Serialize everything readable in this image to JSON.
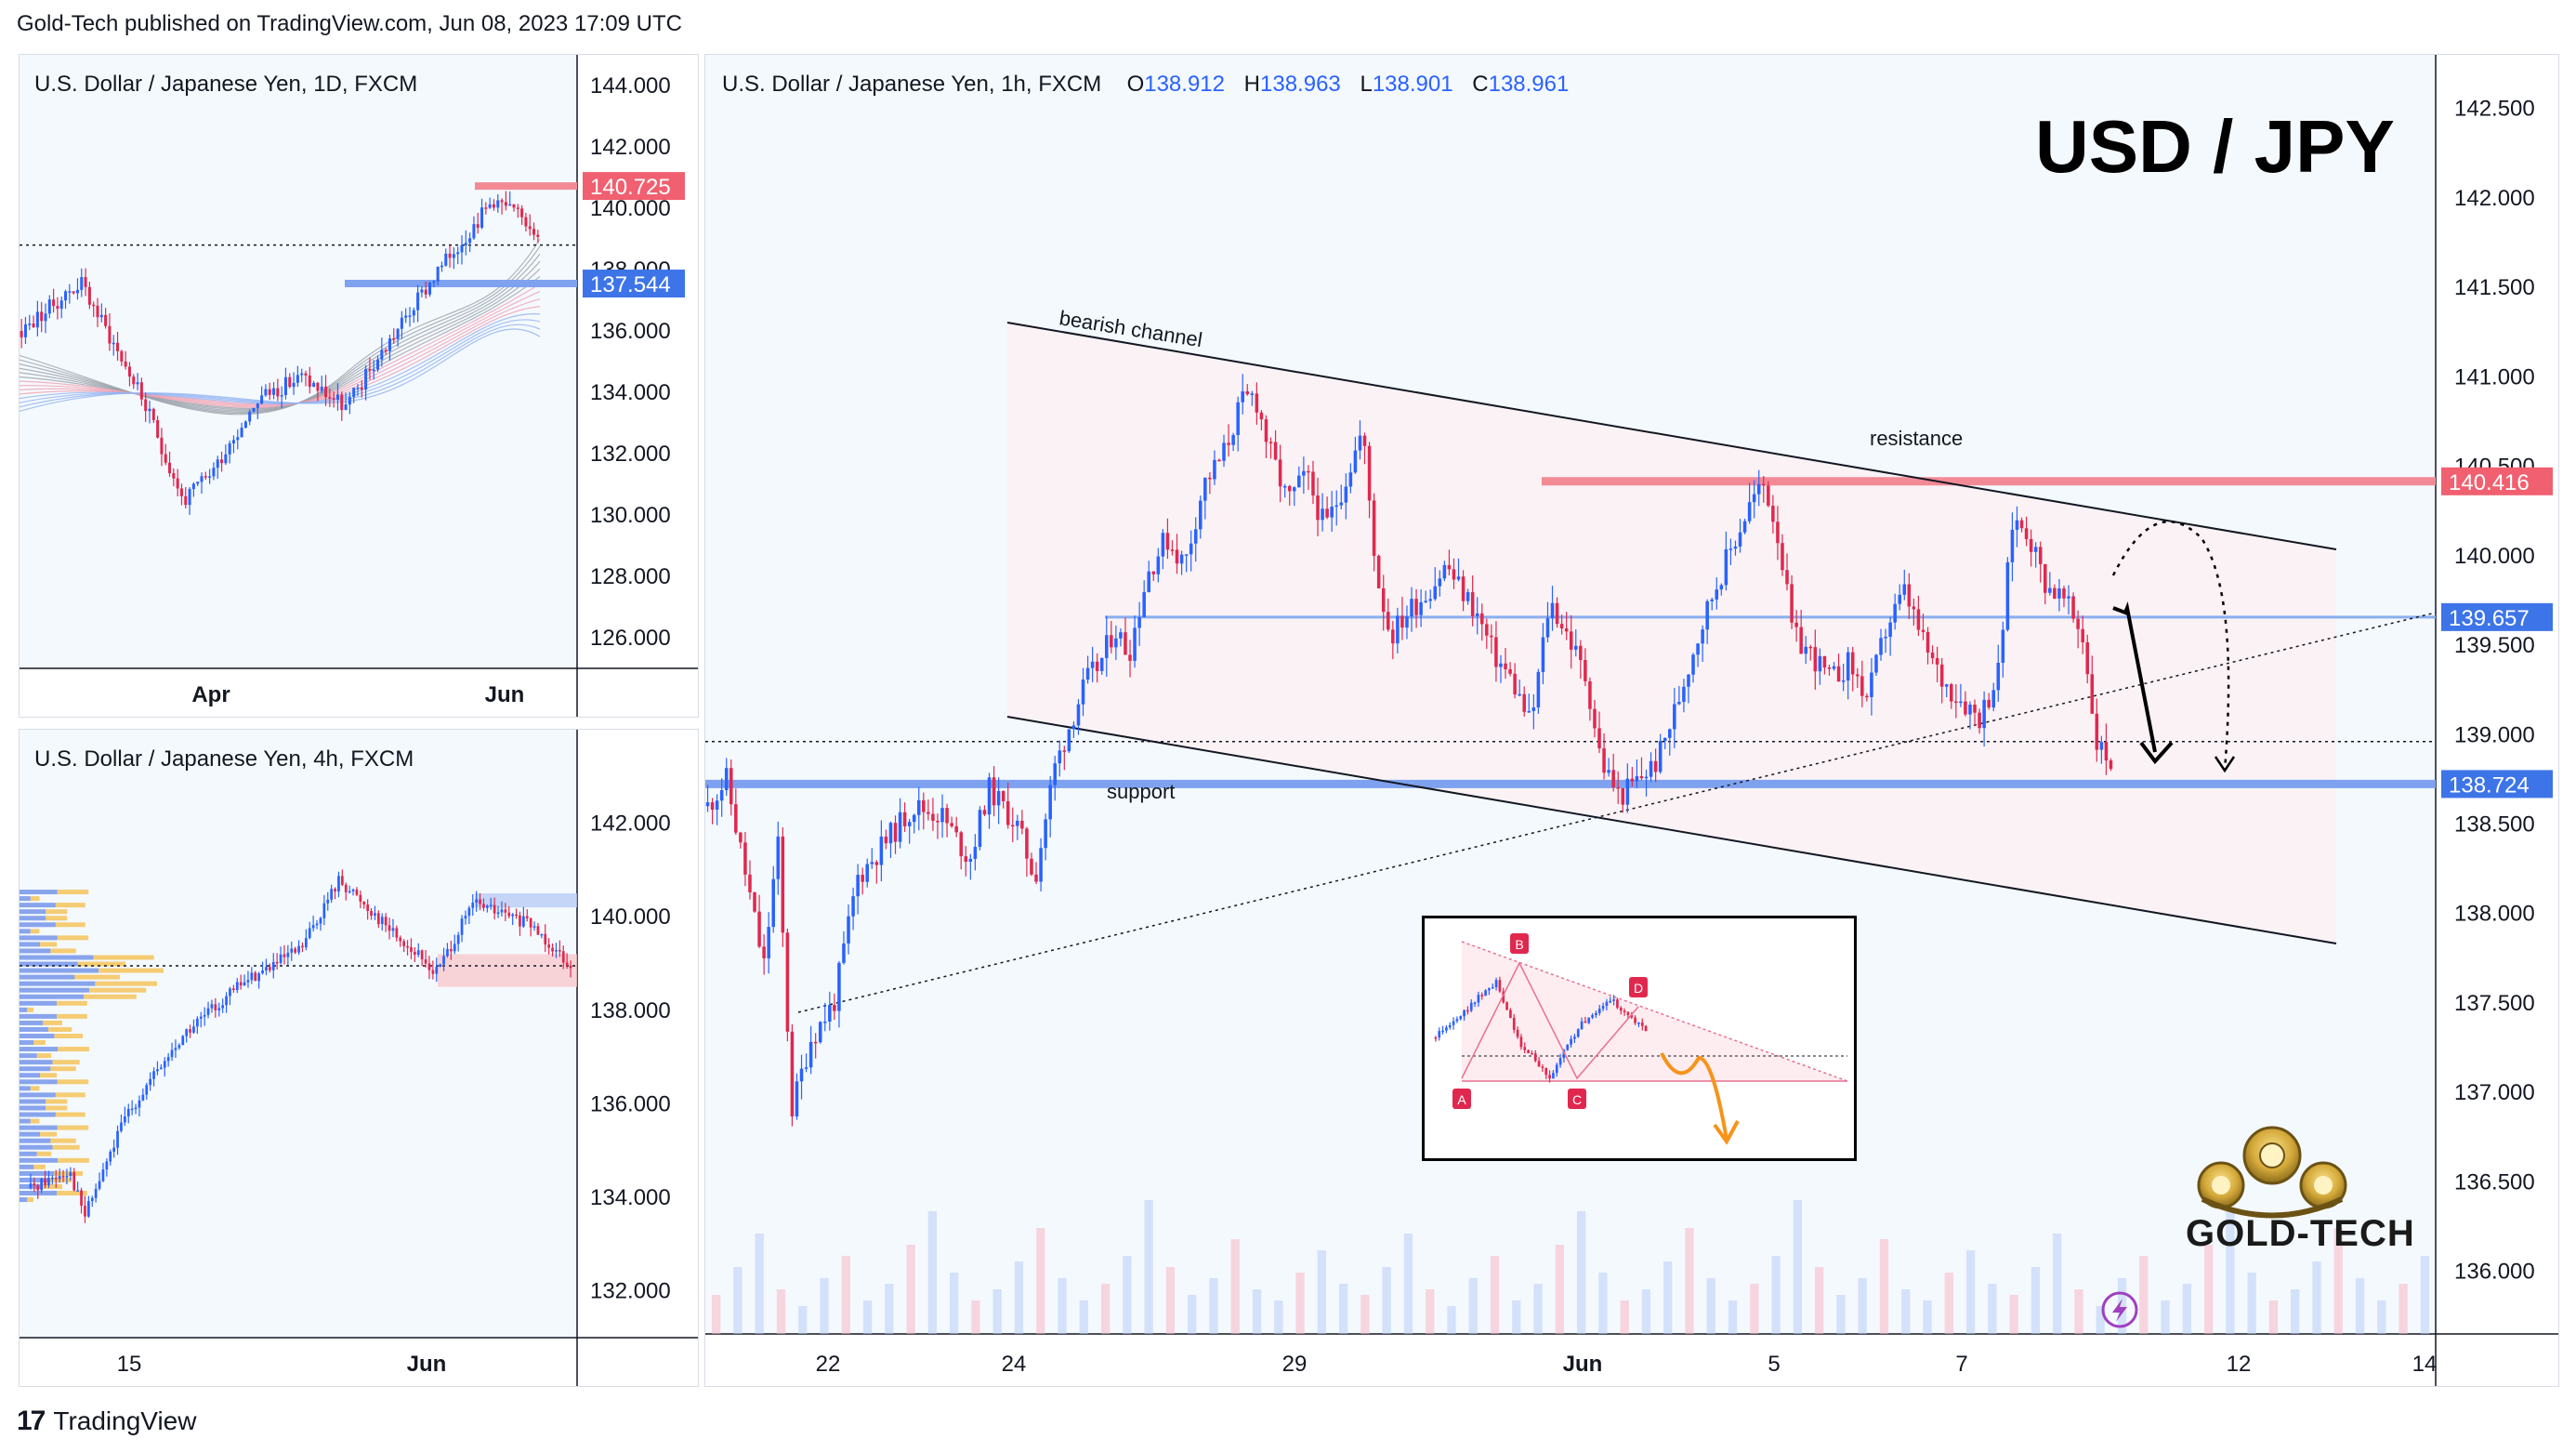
{
  "header": {
    "publish_line": "Gold-Tech published on TradingView.com, Jun 08, 2023 17:09 UTC"
  },
  "footer": {
    "brand": "TradingView",
    "logo_glyph": "17"
  },
  "colors": {
    "up": "#2962ff",
    "down": "#e0284e",
    "resistance": "#f06070",
    "support": "#5b8def",
    "accent_orange": "#f7931a"
  },
  "panel_daily": {
    "title": "U.S. Dollar / Japanese Yen, 1D, FXCM",
    "y_ticks": [
      "144.000",
      "142.000",
      "140.000",
      "138.000",
      "136.000",
      "134.000",
      "132.000",
      "130.000",
      "128.000",
      "126.000"
    ],
    "x_ticks": [
      "Apr",
      "Jun"
    ],
    "tags": {
      "resistance": "140.725",
      "support": "137.544"
    },
    "icons": [
      "moving-average-ribbon"
    ]
  },
  "panel_4h": {
    "title": "U.S. Dollar / Japanese Yen, 4h, FXCM",
    "y_ticks": [
      "142.000",
      "140.000",
      "138.000",
      "136.000",
      "134.000",
      "132.000"
    ],
    "x_ticks": [
      "15",
      "Jun"
    ],
    "icons": [
      "volume-profile"
    ]
  },
  "panel_main": {
    "title": "U.S. Dollar / Japanese Yen, 1h, FXCM",
    "ohlc": {
      "o_label": "O",
      "o": "138.912",
      "h_label": "H",
      "h": "138.963",
      "l_label": "L",
      "l": "138.901",
      "c_label": "C",
      "c": "138.961"
    },
    "big_title": "USD / JPY",
    "y_ticks": [
      "142.500",
      "142.000",
      "141.500",
      "141.000",
      "140.500",
      "140.000",
      "139.500",
      "139.000",
      "138.500",
      "138.000",
      "137.500",
      "137.000",
      "136.500",
      "136.000"
    ],
    "x_ticks": [
      "22",
      "24",
      "29",
      "Jun",
      "5",
      "7",
      "12",
      "14"
    ],
    "tags": {
      "resistance": "140.416",
      "mid": "139.657",
      "support": "138.724"
    },
    "annotations": {
      "channel": "bearish channel",
      "resistance": "resistance",
      "support": "support"
    },
    "inset_labels": [
      "A",
      "B",
      "C",
      "D"
    ],
    "logo_text": "GOLD-TECH",
    "icons": [
      "lightning-icon",
      "gold-tech-logo"
    ]
  },
  "chart_data": [
    {
      "type": "candlestick",
      "title": "U.S. Dollar / Japanese Yen, 1D, FXCM",
      "x_ticks": [
        "Apr",
        "Jun"
      ],
      "ylim": [
        125,
        145
      ],
      "levels": [
        140.725,
        137.544
      ],
      "grid": false
    },
    {
      "type": "candlestick",
      "title": "U.S. Dollar / Japanese Yen, 4h, FXCM",
      "x_ticks": [
        "15",
        "Jun"
      ],
      "ylim": [
        131,
        144
      ],
      "grid": false
    },
    {
      "type": "candlestick",
      "title": "U.S. Dollar / Japanese Yen, 1h, FXCM",
      "ohlc": {
        "open": 138.912,
        "high": 138.963,
        "low": 138.901,
        "close": 138.961
      },
      "x_ticks": [
        "22",
        "24",
        "29",
        "Jun",
        "5",
        "7",
        "12",
        "14"
      ],
      "ylim": [
        135.65,
        142.8
      ],
      "levels": {
        "resistance": 140.416,
        "mid": 139.657,
        "support": 138.724,
        "current": 138.961
      },
      "price_path": [
        [
          0,
          138.6
        ],
        [
          4,
          138.75
        ],
        [
          9,
          138.1
        ],
        [
          12,
          137.7
        ],
        [
          15,
          138.4
        ],
        [
          18,
          136.9
        ],
        [
          22,
          137.3
        ],
        [
          27,
          137.5
        ],
        [
          32,
          138.2
        ],
        [
          38,
          138.4
        ],
        [
          44,
          138.6
        ],
        [
          50,
          138.55
        ],
        [
          56,
          138.3
        ],
        [
          60,
          138.7
        ],
        [
          66,
          138.5
        ],
        [
          70,
          138.2
        ],
        [
          74,
          138.8
        ],
        [
          78,
          139.1
        ],
        [
          81,
          139.3
        ],
        [
          84,
          139.4
        ],
        [
          87,
          139.6
        ],
        [
          90,
          139.45
        ],
        [
          94,
          139.9
        ],
        [
          98,
          140.1
        ],
        [
          102,
          139.95
        ],
        [
          106,
          140.4
        ],
        [
          110,
          140.55
        ],
        [
          114,
          140.85
        ],
        [
          117,
          140.9
        ],
        [
          120,
          140.6
        ],
        [
          124,
          140.3
        ],
        [
          128,
          140.45
        ],
        [
          132,
          140.15
        ],
        [
          136,
          140.4
        ],
        [
          140,
          140.7
        ],
        [
          143,
          139.9
        ],
        [
          146,
          139.55
        ],
        [
          150,
          139.7
        ],
        [
          154,
          139.8
        ],
        [
          158,
          139.95
        ],
        [
          160,
          139.85
        ],
        [
          164,
          139.7
        ],
        [
          168,
          139.45
        ],
        [
          172,
          139.3
        ],
        [
          176,
          139.05
        ],
        [
          180,
          139.75
        ],
        [
          184,
          139.55
        ],
        [
          188,
          139.3
        ],
        [
          191,
          138.85
        ],
        [
          195,
          138.65
        ],
        [
          199,
          138.75
        ],
        [
          203,
          138.85
        ],
        [
          207,
          139.15
        ],
        [
          211,
          139.5
        ],
        [
          215,
          139.8
        ],
        [
          219,
          140.05
        ],
        [
          223,
          140.3
        ],
        [
          226,
          140.4
        ],
        [
          229,
          140.1
        ],
        [
          232,
          139.55
        ],
        [
          236,
          139.45
        ],
        [
          240,
          139.3
        ],
        [
          244,
          139.4
        ],
        [
          248,
          139.2
        ],
        [
          252,
          139.6
        ],
        [
          256,
          139.8
        ],
        [
          260,
          139.5
        ],
        [
          264,
          139.3
        ],
        [
          268,
          139.2
        ],
        [
          272,
          139.1
        ],
        [
          276,
          139.35
        ],
        [
          279,
          140.2
        ],
        [
          282,
          140.15
        ],
        [
          286,
          139.85
        ],
        [
          290,
          139.75
        ],
        [
          294,
          139.55
        ],
        [
          297,
          138.95
        ],
        [
          300,
          138.85
        ]
      ],
      "volume": [
        35,
        60,
        90,
        40,
        25,
        50,
        70,
        30,
        45,
        80,
        110,
        55,
        30,
        40,
        65,
        95,
        50,
        30,
        45,
        70,
        120,
        60,
        35,
        50,
        85,
        40,
        30,
        55,
        75,
        45,
        35,
        60,
        90,
        40,
        25,
        50,
        70,
        30,
        45,
        80,
        110,
        55,
        30,
        40,
        65,
        95,
        50,
        30,
        45,
        70,
        120,
        60,
        35,
        50,
        85,
        40,
        30,
        55,
        75,
        45,
        35,
        60,
        90,
        40,
        25,
        50,
        70,
        30,
        45,
        80,
        110,
        55,
        30,
        40,
        65,
        95,
        50,
        30,
        45,
        70
      ]
    }
  ]
}
